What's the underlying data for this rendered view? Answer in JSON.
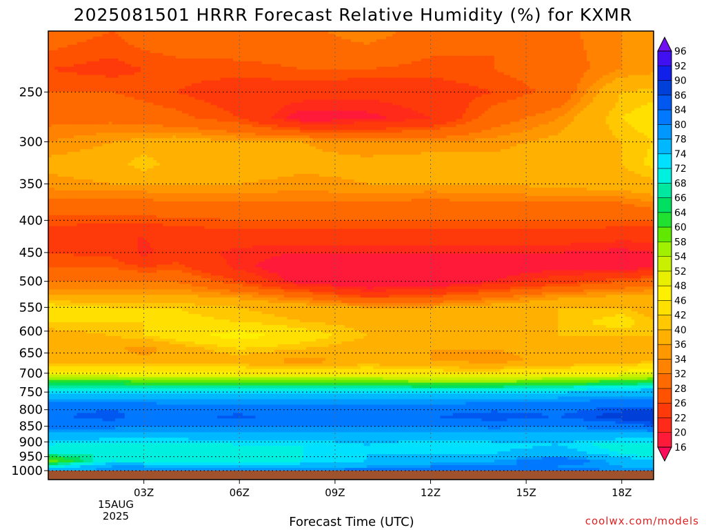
{
  "chart_data": {
    "type": "heatmap",
    "title": "2025081501 HRRR Forecast Relative Humidity (%) for KXMR",
    "xlabel": "Forecast Time (UTC)",
    "ylabel": "",
    "credit": "coolwx.com/models",
    "x_ticks": [
      "03Z",
      "06Z",
      "09Z",
      "12Z",
      "15Z",
      "18Z"
    ],
    "x_tick_hours": [
      3,
      6,
      9,
      12,
      15,
      18
    ],
    "x_date_lines": [
      "15AUG",
      "2025"
    ],
    "xlim": [
      0,
      19
    ],
    "y_ticks": [
      250,
      300,
      350,
      400,
      450,
      500,
      550,
      600,
      650,
      700,
      750,
      800,
      850,
      900,
      950,
      1000
    ],
    "y_scale": "log",
    "ylim_top": 200,
    "ylim_bottom": 1000,
    "grid": true,
    "colorbar_levels": [
      16,
      20,
      22,
      26,
      28,
      32,
      34,
      36,
      40,
      42,
      46,
      48,
      52,
      54,
      58,
      60,
      64,
      66,
      68,
      72,
      74,
      78,
      80,
      84,
      86,
      90,
      92,
      96
    ],
    "colorbar_colors": [
      "#ff0a5a",
      "#ff1a3a",
      "#ff2a1a",
      "#ff3a0a",
      "#ff5200",
      "#ff6a00",
      "#ff8200",
      "#ff9800",
      "#ffb000",
      "#ffc800",
      "#ffe000",
      "#fff000",
      "#e8f000",
      "#c8f000",
      "#a0f000",
      "#60e800",
      "#20e030",
      "#00e060",
      "#00e8a0",
      "#00f0e0",
      "#00e0ff",
      "#00b8ff",
      "#0098ff",
      "#0078ff",
      "#0058f0",
      "#0040d8",
      "#1020e8",
      "#4010f0",
      "#7010f0"
    ],
    "ground_color": "#a0522d",
    "profile_hours": [
      0,
      2,
      3,
      4,
      6,
      8,
      10,
      12,
      14,
      16,
      18,
      19
    ],
    "rh_profiles": [
      {
        "p": 200,
        "v": [
          30,
          28,
          30,
          30,
          31,
          31,
          34,
          30,
          28,
          31,
          34,
          34
        ]
      },
      {
        "p": 230,
        "v": [
          26,
          25,
          26,
          27,
          27,
          28,
          28,
          27,
          28,
          30,
          34,
          35
        ]
      },
      {
        "p": 250,
        "v": [
          28,
          28,
          27,
          26,
          24,
          24,
          23,
          24,
          26,
          29,
          40,
          41
        ]
      },
      {
        "p": 275,
        "v": [
          31,
          31,
          30,
          29,
          26,
          18,
          19,
          22,
          30,
          34,
          42,
          44
        ]
      },
      {
        "p": 300,
        "v": [
          34,
          36,
          37,
          38,
          36,
          36,
          34,
          34,
          35,
          37,
          40,
          42
        ]
      },
      {
        "p": 325,
        "v": [
          37,
          38,
          42,
          38,
          38,
          37,
          37,
          38,
          37,
          39,
          40,
          43
        ]
      },
      {
        "p": 350,
        "v": [
          35,
          36,
          36,
          36,
          36,
          35,
          36,
          36,
          36,
          37,
          38,
          39
        ]
      },
      {
        "p": 375,
        "v": [
          31,
          31,
          31,
          32,
          32,
          32,
          32,
          31,
          32,
          32,
          32,
          34
        ]
      },
      {
        "p": 400,
        "v": [
          27,
          27,
          27,
          27,
          28,
          28,
          28,
          28,
          28,
          28,
          28,
          28
        ]
      },
      {
        "p": 425,
        "v": [
          24,
          22,
          22,
          24,
          24,
          24,
          24,
          24,
          24,
          24,
          23,
          23
        ]
      },
      {
        "p": 450,
        "v": [
          26,
          25,
          21,
          24,
          21,
          20,
          20,
          20,
          20,
          20,
          19,
          20
        ]
      },
      {
        "p": 475,
        "v": [
          28,
          28,
          26,
          27,
          21,
          17,
          16,
          17,
          18,
          19,
          18,
          20
        ]
      },
      {
        "p": 500,
        "v": [
          32,
          32,
          32,
          32,
          26,
          18,
          16,
          16,
          20,
          24,
          28,
          30
        ]
      },
      {
        "p": 525,
        "v": [
          36,
          36,
          36,
          36,
          34,
          30,
          24,
          26,
          30,
          34,
          36,
          36
        ]
      },
      {
        "p": 550,
        "v": [
          44,
          42,
          42,
          42,
          40,
          38,
          36,
          36,
          38,
          40,
          40,
          38
        ]
      },
      {
        "p": 580,
        "v": [
          42,
          42,
          42,
          43,
          42,
          40,
          39,
          38,
          39,
          40,
          44,
          40
        ]
      },
      {
        "p": 610,
        "v": [
          38,
          40,
          42,
          44,
          48,
          44,
          40,
          38,
          38,
          40,
          40,
          40
        ]
      },
      {
        "p": 640,
        "v": [
          37,
          37,
          34,
          38,
          42,
          40,
          38,
          36,
          36,
          37,
          37,
          38
        ]
      },
      {
        "p": 670,
        "v": [
          38,
          38,
          38,
          38,
          38,
          34,
          38,
          36,
          35,
          37,
          38,
          40
        ]
      },
      {
        "p": 700,
        "v": [
          48,
          48,
          48,
          48,
          46,
          46,
          46,
          44,
          44,
          46,
          48,
          50
        ]
      },
      {
        "p": 720,
        "v": [
          60,
          60,
          59,
          59,
          59,
          58,
          58,
          57,
          57,
          58,
          60,
          62
        ]
      },
      {
        "p": 740,
        "v": [
          70,
          70,
          70,
          70,
          70,
          69,
          69,
          68,
          68,
          70,
          72,
          74
        ]
      },
      {
        "p": 760,
        "v": [
          76,
          76,
          76,
          76,
          76,
          76,
          76,
          76,
          76,
          77,
          78,
          78
        ]
      },
      {
        "p": 790,
        "v": [
          82,
          83,
          82,
          81,
          81,
          81,
          81,
          81,
          82,
          82,
          84,
          84
        ]
      },
      {
        "p": 820,
        "v": [
          83,
          86,
          82,
          83,
          85,
          82,
          84,
          84,
          86,
          84,
          88,
          90
        ]
      },
      {
        "p": 850,
        "v": [
          81,
          81,
          80,
          80,
          80,
          80,
          80,
          80,
          81,
          80,
          82,
          84
        ]
      },
      {
        "p": 880,
        "v": [
          76,
          76,
          76,
          76,
          76,
          76,
          76,
          76,
          76,
          76,
          76,
          76
        ]
      },
      {
        "p": 910,
        "v": [
          72,
          70,
          70,
          70,
          72,
          72,
          74,
          72,
          73,
          74,
          70,
          70
        ]
      },
      {
        "p": 940,
        "v": [
          68,
          68,
          70,
          70,
          70,
          72,
          74,
          74,
          74,
          76,
          72,
          70
        ]
      },
      {
        "p": 965,
        "v": [
          58,
          72,
          70,
          68,
          70,
          72,
          74,
          76,
          78,
          84,
          76,
          74
        ]
      },
      {
        "p": 985,
        "v": [
          70,
          78,
          78,
          76,
          76,
          76,
          78,
          80,
          80,
          80,
          78,
          76
        ]
      },
      {
        "p": 1000,
        "v": [
          76,
          80,
          80,
          80,
          80,
          80,
          82,
          82,
          82,
          82,
          80,
          80
        ]
      }
    ]
  }
}
